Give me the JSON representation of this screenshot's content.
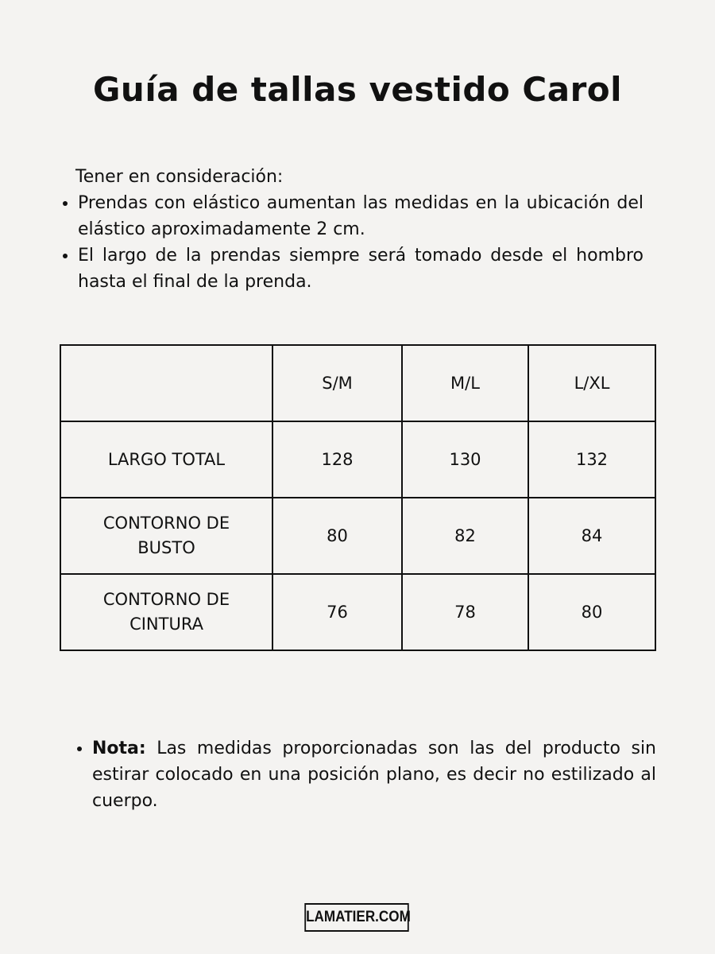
{
  "title": "Guía de tallas vestido Carol",
  "intro": {
    "lead": "Tener en consideración:",
    "bullets": [
      "Prendas con elástico aumentan las medidas en la ubicación del elástico aproximadamente 2 cm.",
      "El largo de la prendas siempre será tomado desde el hombro hasta el final de la prenda."
    ]
  },
  "table": {
    "headers": [
      "",
      "S/M",
      "M/L",
      "L/XL"
    ],
    "rows": [
      [
        "LARGO TOTAL",
        "128",
        "130",
        "132"
      ],
      [
        "CONTORNO DE BUSTO",
        "80",
        "82",
        "84"
      ],
      [
        "CONTORNO DE CINTURA",
        "76",
        "78",
        "80"
      ]
    ]
  },
  "note": {
    "label": "Nota:",
    "text": " Las medidas proporcionadas son las del producto sin estirar colocado en una posición plano, es decir no estilizado al cuerpo."
  },
  "logo": "LAMATIER.COM"
}
